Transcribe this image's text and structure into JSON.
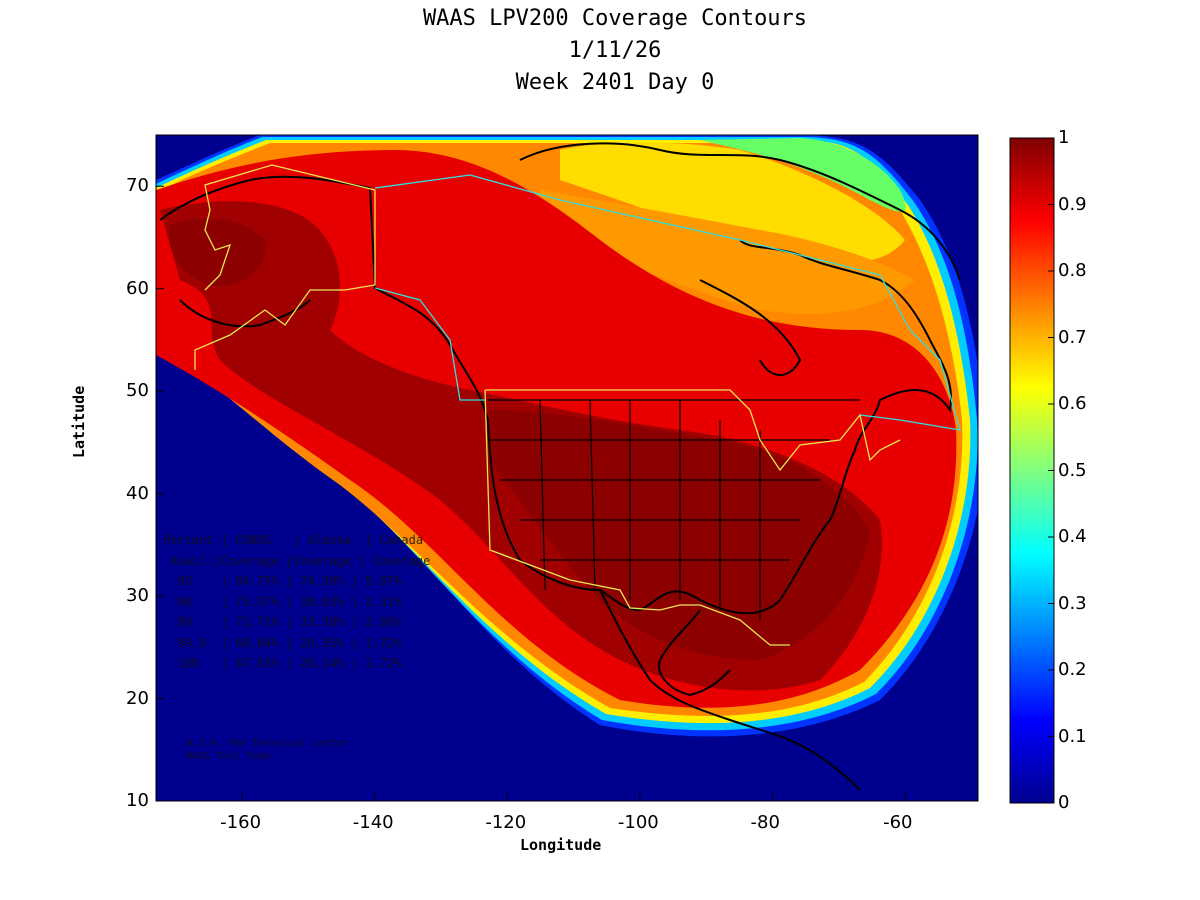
{
  "title": {
    "line1": "WAAS LPV200 Coverage Contours",
    "line2": "1/11/26",
    "line3": "Week 2401 Day 0"
  },
  "map": {
    "xlabel": "Longitude",
    "ylabel": "Latitude",
    "x_ticks": [
      "-160",
      "-140",
      "-120",
      "-100",
      "-80",
      "-60"
    ],
    "y_ticks": [
      "70",
      "60",
      "50",
      "40",
      "30",
      "20",
      "10"
    ],
    "xlim": [
      -173,
      -49
    ],
    "ylim": [
      10,
      75
    ]
  },
  "colorbar": {
    "ticks": [
      "1",
      "0.9",
      "0.8",
      "0.7",
      "0.6",
      "0.5",
      "0.4",
      "0.3",
      "0.2",
      "0.1",
      "0"
    ],
    "range": [
      0,
      1
    ],
    "colormap": "jet"
  },
  "stats_table": {
    "header1": "Percent | CONUS   | Alaska  | Canada",
    "header2": " Avail.|Coverage |Coverage | Coverage",
    "rows": [
      "  95    | 84.75% | 74.30% | 5.87%",
      "  98    | 73.97% | 38.03% | 2.31%",
      "  99    | 71.71% | 33.38% | 2.06%",
      "  99.9  | 68.04% | 28.35% | 1.72%",
      "  100   | 67.63% | 28.14% | 1.72%"
    ]
  },
  "credit": {
    "line1": "W.J.H. FAA Technical Center",
    "line2": "WAAS Test Team"
  },
  "colors": {
    "ocean": "#00008f",
    "coastline": "#000000",
    "fir_boundary": "#e8e850",
    "fir_boundary2": "#30e0e0"
  }
}
